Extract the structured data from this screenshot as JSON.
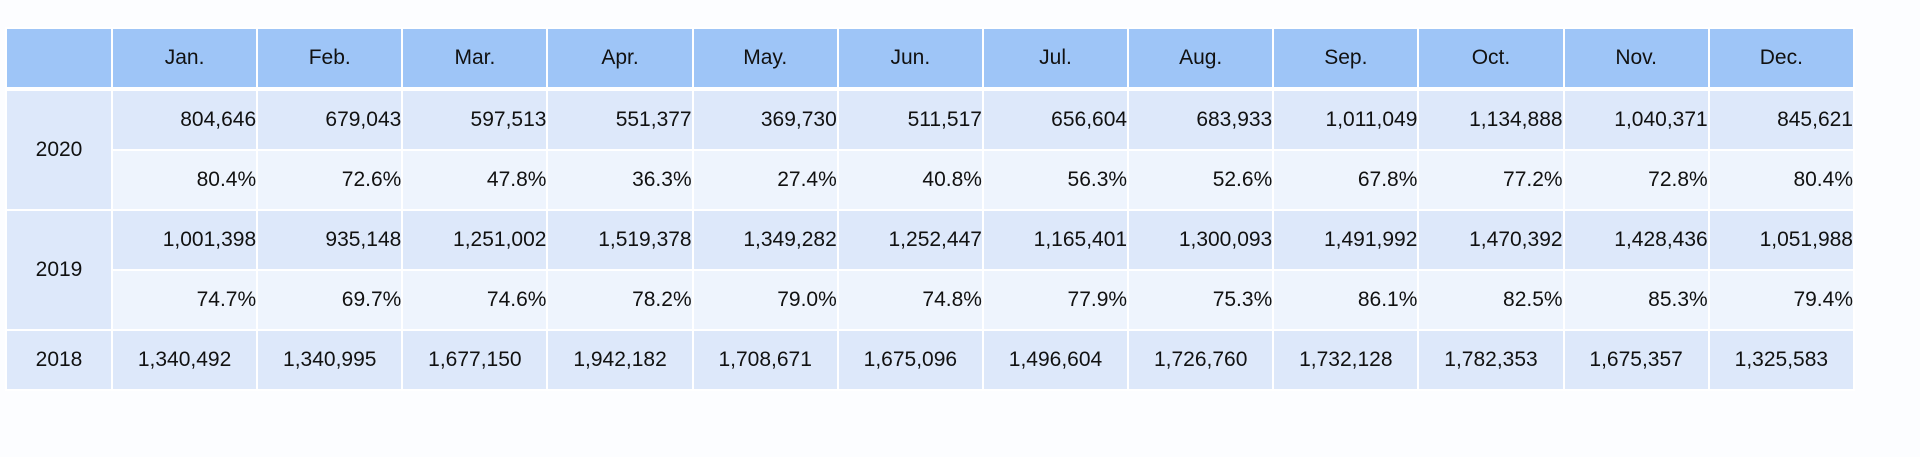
{
  "chart_data": {
    "type": "table",
    "columns": [
      "",
      "Jan.",
      "Feb.",
      "Mar.",
      "Apr.",
      "May.",
      "Jun.",
      "Jul.",
      "Aug.",
      "Sep.",
      "Oct.",
      "Nov.",
      "Dec."
    ],
    "rows": [
      {
        "year": "2020",
        "values": [
          "804,646",
          "679,043",
          "597,513",
          "551,377",
          "369,730",
          "511,517",
          "656,604",
          "683,933",
          "1,011,049",
          "1,134,888",
          "1,040,371",
          "845,621"
        ],
        "percents": [
          "80.4%",
          "72.6%",
          "47.8%",
          "36.3%",
          "27.4%",
          "40.8%",
          "56.3%",
          "52.6%",
          "67.8%",
          "77.2%",
          "72.8%",
          "80.4%"
        ]
      },
      {
        "year": "2019",
        "values": [
          "1,001,398",
          "935,148",
          "1,251,002",
          "1,519,378",
          "1,349,282",
          "1,252,447",
          "1,165,401",
          "1,300,093",
          "1,491,992",
          "1,470,392",
          "1,428,436",
          "1,051,988"
        ],
        "percents": [
          "74.7%",
          "69.7%",
          "74.6%",
          "78.2%",
          "79.0%",
          "74.8%",
          "77.9%",
          "75.3%",
          "86.1%",
          "82.5%",
          "85.3%",
          "79.4%"
        ]
      },
      {
        "year": "2018",
        "values": [
          "1,340,492",
          "1,340,995",
          "1,677,150",
          "1,942,182",
          "1,708,671",
          "1,675,096",
          "1,496,604",
          "1,726,760",
          "1,732,128",
          "1,782,353",
          "1,675,357",
          "1,325,583"
        ]
      }
    ],
    "colors": {
      "header": "#9ec5f7",
      "row_dark": "#dde8fa",
      "row_light": "#eef4fd"
    }
  }
}
